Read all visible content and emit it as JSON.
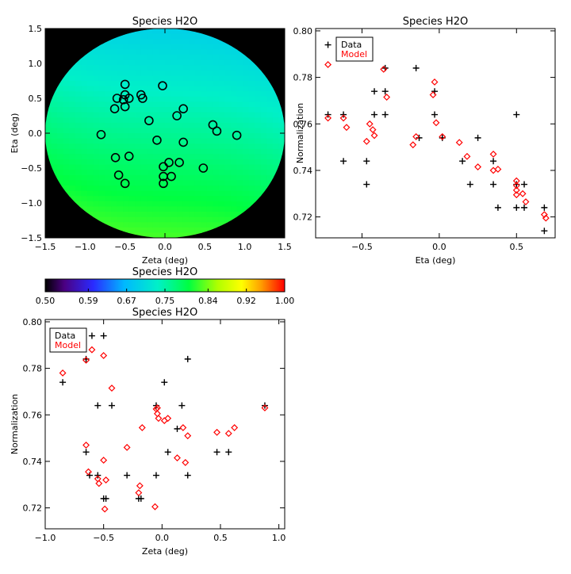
{
  "colors": {
    "text": "#000000",
    "model": "#ff0000",
    "background_outside_map": "#000000",
    "marker_circle": "#000000"
  },
  "chart_data": [
    {
      "id": "map",
      "type": "heatmap",
      "title": "Species H2O",
      "xlabel": "Zeta (deg)",
      "ylabel": "Eta (deg)",
      "xlim": [
        -1.5,
        1.5
      ],
      "ylim": [
        -1.5,
        1.5
      ],
      "xticks": [
        -1.5,
        -1.0,
        -0.5,
        0.0,
        0.5,
        1.0,
        1.5
      ],
      "xtick_labels": [
        "−1.5",
        "−1.0",
        "−0.5",
        "0.0",
        "0.5",
        "1.0",
        "1.5"
      ],
      "yticks": [
        -1.5,
        -1.0,
        -0.5,
        0.0,
        0.5,
        1.0,
        1.5
      ],
      "ytick_labels": [
        "−1.5",
        "−1.0",
        "−0.5",
        "0.0",
        "0.5",
        "1.0",
        "1.5"
      ],
      "disk_radius": 1.5,
      "field_value_range": [
        0.66,
        0.86
      ],
      "points": [
        [
          -0.5,
          0.7
        ],
        [
          -0.03,
          0.68
        ],
        [
          -0.6,
          0.5
        ],
        [
          -0.5,
          0.55
        ],
        [
          -0.52,
          0.48
        ],
        [
          -0.45,
          0.5
        ],
        [
          -0.3,
          0.55
        ],
        [
          -0.28,
          0.5
        ],
        [
          -0.63,
          0.35
        ],
        [
          -0.5,
          0.38
        ],
        [
          0.23,
          0.35
        ],
        [
          0.15,
          0.25
        ],
        [
          -0.2,
          0.18
        ],
        [
          0.6,
          0.12
        ],
        [
          0.65,
          0.03
        ],
        [
          -0.8,
          -0.02
        ],
        [
          0.9,
          -0.03
        ],
        [
          -0.1,
          -0.1
        ],
        [
          0.23,
          -0.13
        ],
        [
          -0.62,
          -0.35
        ],
        [
          -0.45,
          -0.33
        ],
        [
          0.05,
          -0.42
        ],
        [
          0.18,
          -0.42
        ],
        [
          0.48,
          -0.5
        ],
        [
          -0.02,
          -0.48
        ],
        [
          -0.58,
          -0.6
        ],
        [
          0.08,
          -0.62
        ],
        [
          -0.02,
          -0.62
        ],
        [
          -0.5,
          -0.72
        ],
        [
          -0.02,
          -0.72
        ]
      ]
    },
    {
      "id": "colorbar",
      "type": "colorbar",
      "title": "Species H2O",
      "range": [
        0.5,
        1.0
      ],
      "ticks": [
        0.5,
        0.59,
        0.67,
        0.75,
        0.84,
        0.92,
        1.0
      ],
      "tick_labels": [
        "0.50",
        "0.59",
        "0.67",
        "0.75",
        "0.84",
        "0.92",
        "1.00"
      ]
    },
    {
      "id": "eta",
      "type": "scatter",
      "title": "Species H2O",
      "xlabel": "Eta (deg)",
      "ylabel": "Normalization",
      "xlim": [
        -0.8,
        0.75
      ],
      "ylim": [
        0.711,
        0.801
      ],
      "xticks": [
        -0.5,
        0.0,
        0.5
      ],
      "xtick_labels": [
        "−0.5",
        "0.0",
        "0.5"
      ],
      "yticks": [
        0.72,
        0.74,
        0.76,
        0.78,
        0.8
      ],
      "ytick_labels": [
        "0.72",
        "0.74",
        "0.76",
        "0.78",
        "0.80"
      ],
      "legend_location": "top-left",
      "series": [
        {
          "name": "Data",
          "marker": "plus",
          "color": "#000000",
          "points": [
            [
              -0.72,
              0.794
            ],
            [
              -0.62,
              0.794
            ],
            [
              -0.72,
              0.764
            ],
            [
              -0.62,
              0.764
            ],
            [
              -0.62,
              0.744
            ],
            [
              -0.47,
              0.744
            ],
            [
              -0.47,
              0.734
            ],
            [
              -0.42,
              0.774
            ],
            [
              -0.42,
              0.764
            ],
            [
              -0.35,
              0.784
            ],
            [
              -0.35,
              0.774
            ],
            [
              -0.35,
              0.764
            ],
            [
              -0.15,
              0.784
            ],
            [
              -0.13,
              0.754
            ],
            [
              -0.03,
              0.774
            ],
            [
              -0.03,
              0.764
            ],
            [
              0.02,
              0.754
            ],
            [
              0.15,
              0.744
            ],
            [
              0.2,
              0.734
            ],
            [
              0.25,
              0.754
            ],
            [
              0.35,
              0.744
            ],
            [
              0.35,
              0.734
            ],
            [
              0.38,
              0.724
            ],
            [
              0.5,
              0.764
            ],
            [
              0.5,
              0.734
            ],
            [
              0.5,
              0.724
            ],
            [
              0.55,
              0.734
            ],
            [
              0.55,
              0.724
            ],
            [
              0.68,
              0.724
            ],
            [
              0.68,
              0.714
            ]
          ]
        },
        {
          "name": "Model",
          "marker": "diamond",
          "color": "#ff0000",
          "points": [
            [
              -0.72,
              0.7855
            ],
            [
              -0.62,
              0.789
            ],
            [
              -0.72,
              0.7625
            ],
            [
              -0.62,
              0.7625
            ],
            [
              -0.6,
              0.7585
            ],
            [
              -0.47,
              0.7525
            ],
            [
              -0.45,
              0.76
            ],
            [
              -0.43,
              0.7575
            ],
            [
              -0.42,
              0.755
            ],
            [
              -0.36,
              0.7835
            ],
            [
              -0.34,
              0.7715
            ],
            [
              -0.17,
              0.751
            ],
            [
              -0.15,
              0.7545
            ],
            [
              -0.04,
              0.7725
            ],
            [
              -0.03,
              0.778
            ],
            [
              -0.02,
              0.7605
            ],
            [
              0.02,
              0.7545
            ],
            [
              0.13,
              0.752
            ],
            [
              0.18,
              0.746
            ],
            [
              0.25,
              0.7415
            ],
            [
              0.35,
              0.747
            ],
            [
              0.35,
              0.74
            ],
            [
              0.38,
              0.7405
            ],
            [
              0.5,
              0.7355
            ],
            [
              0.5,
              0.7335
            ],
            [
              0.5,
              0.7315
            ],
            [
              0.5,
              0.7295
            ],
            [
              0.54,
              0.73
            ],
            [
              0.56,
              0.7265
            ],
            [
              0.68,
              0.721
            ],
            [
              0.69,
              0.7195
            ]
          ]
        }
      ]
    },
    {
      "id": "zeta",
      "type": "scatter",
      "title": "Species H2O",
      "xlabel": "Zeta (deg)",
      "ylabel": "Normalization",
      "xlim": [
        -1.0,
        1.05
      ],
      "ylim": [
        0.711,
        0.801
      ],
      "xticks": [
        -1.0,
        -0.5,
        0.0,
        0.5,
        1.0
      ],
      "xtick_labels": [
        "−1.0",
        "−0.5",
        "0.0",
        "0.5",
        "1.0"
      ],
      "yticks": [
        0.72,
        0.74,
        0.76,
        0.78,
        0.8
      ],
      "ytick_labels": [
        "0.72",
        "0.74",
        "0.76",
        "0.78",
        "0.80"
      ],
      "legend_location": "top-left",
      "series": [
        {
          "name": "Data",
          "marker": "plus",
          "color": "#000000",
          "points": [
            [
              -0.85,
              0.774
            ],
            [
              -0.65,
              0.784
            ],
            [
              -0.6,
              0.794
            ],
            [
              -0.5,
              0.794
            ],
            [
              -0.55,
              0.764
            ],
            [
              -0.43,
              0.764
            ],
            [
              -0.65,
              0.744
            ],
            [
              -0.62,
              0.734
            ],
            [
              -0.55,
              0.734
            ],
            [
              -0.5,
              0.724
            ],
            [
              -0.48,
              0.724
            ],
            [
              -0.3,
              0.734
            ],
            [
              -0.2,
              0.724
            ],
            [
              -0.18,
              0.724
            ],
            [
              -0.05,
              0.764
            ],
            [
              -0.05,
              0.734
            ],
            [
              0.02,
              0.774
            ],
            [
              0.05,
              0.744
            ],
            [
              0.13,
              0.754
            ],
            [
              0.17,
              0.764
            ],
            [
              0.22,
              0.784
            ],
            [
              0.22,
              0.734
            ],
            [
              0.47,
              0.744
            ],
            [
              0.57,
              0.744
            ],
            [
              0.88,
              0.764
            ]
          ]
        },
        {
          "name": "Model",
          "marker": "diamond",
          "color": "#ff0000",
          "points": [
            [
              -0.85,
              0.778
            ],
            [
              -0.65,
              0.7835
            ],
            [
              -0.6,
              0.788
            ],
            [
              -0.5,
              0.7855
            ],
            [
              -0.43,
              0.7715
            ],
            [
              -0.65,
              0.747
            ],
            [
              -0.63,
              0.7355
            ],
            [
              -0.55,
              0.7325
            ],
            [
              -0.54,
              0.7305
            ],
            [
              -0.5,
              0.7405
            ],
            [
              -0.48,
              0.732
            ],
            [
              -0.49,
              0.7195
            ],
            [
              -0.3,
              0.746
            ],
            [
              -0.2,
              0.7265
            ],
            [
              -0.19,
              0.7295
            ],
            [
              -0.17,
              0.7545
            ],
            [
              -0.06,
              0.7205
            ],
            [
              -0.05,
              0.7625
            ],
            [
              -0.04,
              0.763
            ],
            [
              -0.04,
              0.7605
            ],
            [
              -0.03,
              0.7585
            ],
            [
              0.02,
              0.7575
            ],
            [
              0.05,
              0.7585
            ],
            [
              0.13,
              0.7415
            ],
            [
              0.18,
              0.7545
            ],
            [
              0.2,
              0.7395
            ],
            [
              0.22,
              0.751
            ],
            [
              0.47,
              0.7525
            ],
            [
              0.57,
              0.752
            ],
            [
              0.62,
              0.7545
            ],
            [
              0.88,
              0.763
            ]
          ]
        }
      ]
    }
  ]
}
